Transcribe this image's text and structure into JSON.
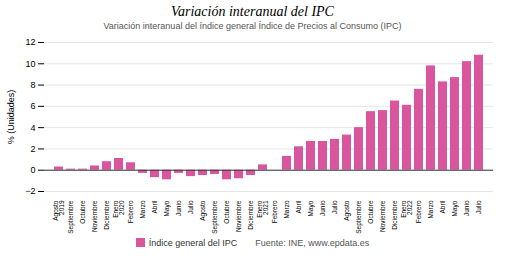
{
  "chart_data": {
    "type": "bar",
    "title": "Variación interanual del IPC",
    "subtitle": "Variación interanual del índice general Índice de Precios al Consumo (IPC)",
    "ylabel": "% (Unidades)",
    "categories": [
      "Agosto\n2019",
      "Septiembre",
      "Octubre",
      "Noviembre",
      "Diciembre",
      "Enero\n2020",
      "Febrero",
      "Marzo",
      "Abril",
      "Mayo",
      "Junio",
      "Julio",
      "Agosto",
      "Septiembre",
      "Octubre",
      "Noviembre",
      "Diciembre",
      "Enero\n2021",
      "Febrero",
      "Marzo",
      "Abril",
      "Mayo",
      "Junio",
      "Julio",
      "Agosto",
      "Septiembre",
      "Octubre",
      "Noviembre",
      "Diciembre",
      "Enero\n2022",
      "Febrero",
      "Marzo",
      "Abril",
      "Mayo",
      "Junio",
      "Julio"
    ],
    "series": [
      {
        "name": "Índice general del IPC",
        "color": "#d9559e",
        "values": [
          0.3,
          0.1,
          0.1,
          0.4,
          0.8,
          1.1,
          0.7,
          -0.3,
          -0.7,
          -0.9,
          -0.3,
          -0.6,
          -0.5,
          -0.4,
          -0.9,
          -0.8,
          -0.5,
          0.5,
          0.0,
          1.3,
          2.2,
          2.7,
          2.7,
          2.9,
          3.3,
          4.0,
          5.5,
          5.6,
          6.5,
          6.1,
          7.6,
          9.8,
          8.3,
          8.7,
          10.2,
          10.8
        ]
      }
    ],
    "ylim": [
      -2,
      12
    ],
    "yticks": [
      -2,
      0,
      2,
      4,
      6,
      8,
      10,
      12
    ],
    "grid": true,
    "annotations": [
      "Fuente: INE, ",
      "www.epdata.es"
    ]
  }
}
